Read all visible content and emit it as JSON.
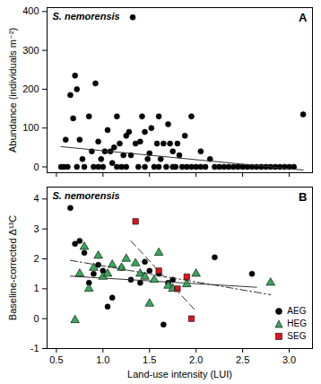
{
  "chart_data": [
    {
      "type": "scatter",
      "title": "S. nemorensis",
      "annotations": [
        "A"
      ],
      "y_label": "Abundance (individuals m⁻²)",
      "x_label": null,
      "xlim": [
        0.4,
        3.25
      ],
      "ylim": [
        -15,
        410
      ],
      "xticks": [
        0.5,
        {
          "value": 1,
          "label": "1.0"
        },
        1.5,
        {
          "value": 2,
          "label": "2.0"
        },
        2.5,
        {
          "value": 3,
          "label": "3.0"
        }
      ],
      "yticks": [
        0,
        100,
        200,
        300,
        400
      ],
      "tick_labels": "y",
      "grid": false,
      "series": [
        {
          "name": null,
          "color": "#000000",
          "marker": "circle",
          "x": [
            0.55,
            0.58,
            0.6,
            0.62,
            0.65,
            0.68,
            0.7,
            0.72,
            0.72,
            0.75,
            0.78,
            0.8,
            0.85,
            0.88,
            0.9,
            0.92,
            0.95,
            0.95,
            0.98,
            1.0,
            1.02,
            1.05,
            1.08,
            1.1,
            1.12,
            1.15,
            1.15,
            1.18,
            1.2,
            1.22,
            1.25,
            1.25,
            1.28,
            1.3,
            1.32,
            1.35,
            1.38,
            1.4,
            1.42,
            1.45,
            1.45,
            1.48,
            1.5,
            1.52,
            1.55,
            1.58,
            1.6,
            1.6,
            1.62,
            1.65,
            1.68,
            1.7,
            1.72,
            1.75,
            1.75,
            1.78,
            1.8,
            1.82,
            1.85,
            1.88,
            1.9,
            1.95,
            1.95,
            2.0,
            2.05,
            2.05,
            2.1,
            2.15,
            2.2,
            2.25,
            2.3,
            2.35,
            2.4,
            2.45,
            2.5,
            2.55,
            2.6,
            2.65,
            2.7,
            2.75,
            2.8,
            2.85,
            2.9,
            2.95,
            3.0,
            3.05,
            3.15
          ],
          "values": [
            0,
            0,
            70,
            0,
            185,
            125,
            235,
            200,
            0,
            70,
            20,
            0,
            130,
            40,
            0,
            215,
            65,
            0,
            20,
            0,
            40,
            95,
            40,
            10,
            50,
            130,
            0,
            60,
            0,
            30,
            80,
            0,
            90,
            30,
            385,
            60,
            0,
            65,
            130,
            90,
            0,
            20,
            35,
            100,
            0,
            60,
            130,
            0,
            20,
            60,
            0,
            110,
            60,
            40,
            0,
            0,
            60,
            30,
            0,
            80,
            0,
            130,
            0,
            0,
            40,
            0,
            0,
            20,
            0,
            0,
            0,
            0,
            0,
            0,
            0,
            0,
            0,
            0,
            0,
            0,
            0,
            0,
            0,
            0,
            0,
            0,
            135
          ],
          "trend": {
            "x": [
              0.55,
              3.15
            ],
            "values": [
              52,
              -8
            ]
          },
          "line_style": "solid"
        }
      ]
    },
    {
      "type": "scatter",
      "title": "S. nemorensis",
      "annotations": [
        "B"
      ],
      "y_label": "Baseline-corrected Δ¹³C",
      "x_label": "Land-use intensity (LUI)",
      "xlim": [
        0.4,
        3.25
      ],
      "ylim": [
        -1,
        4.4
      ],
      "xticks": [
        0.5,
        {
          "value": 1,
          "label": "1.0"
        },
        1.5,
        {
          "value": 2,
          "label": "2.0"
        },
        2.5,
        {
          "value": 3,
          "label": "3.0"
        }
      ],
      "yticks": [
        -1,
        0,
        1,
        2,
        3,
        4
      ],
      "grid": false,
      "legend": "bottom-right",
      "series": [
        {
          "name": "AEG",
          "color": "#000000",
          "marker": "circle",
          "line_style": "solid",
          "x": [
            0.65,
            0.7,
            0.75,
            0.8,
            0.85,
            0.9,
            0.95,
            1.0,
            1.05,
            1.1,
            1.2,
            1.3,
            1.4,
            1.45,
            1.5,
            1.6,
            1.65,
            1.7,
            1.75,
            2.2,
            2.6
          ],
          "values": [
            3.7,
            2.5,
            2.6,
            2.2,
            1.2,
            1.5,
            1.8,
            1.6,
            0.4,
            0.7,
            1.7,
            1.3,
            1.2,
            1.9,
            1.6,
            1.5,
            -0.2,
            1.2,
            1.3,
            2.05,
            1.5
          ],
          "trend": {
            "x": [
              0.65,
              2.65
            ],
            "values": [
              1.42,
              1.05
            ]
          }
        },
        {
          "name": "HEG",
          "color": "#3aa55c",
          "marker": "triangle",
          "line_style": "dashdot",
          "x": [
            0.7,
            0.75,
            0.8,
            0.85,
            0.9,
            0.95,
            1.0,
            1.05,
            1.1,
            1.2,
            1.25,
            1.35,
            1.4,
            1.45,
            1.5,
            1.55,
            1.6,
            1.7,
            1.75,
            1.9,
            2.0,
            2.8
          ],
          "values": [
            -0.05,
            1.5,
            2.4,
            1.0,
            1.7,
            2.1,
            1.4,
            1.5,
            1.8,
            1.7,
            2.0,
            1.85,
            1.5,
            1.4,
            0.5,
            1.3,
            2.2,
            1.1,
            1.0,
            1.15,
            1.5,
            1.2
          ],
          "trend": {
            "x": [
              0.65,
              2.8
            ],
            "values": [
              1.95,
              0.8
            ]
          }
        },
        {
          "name": "SEG",
          "color": "#e0141e",
          "marker": "square",
          "line_style": "dashed",
          "x": [
            1.35,
            1.6,
            1.8,
            1.9,
            1.95
          ],
          "values": [
            3.25,
            1.6,
            1.0,
            1.4,
            0.0
          ],
          "trend": {
            "x": [
              1.3,
              2.0
            ],
            "values": [
              2.6,
              0.25
            ]
          }
        }
      ]
    }
  ]
}
